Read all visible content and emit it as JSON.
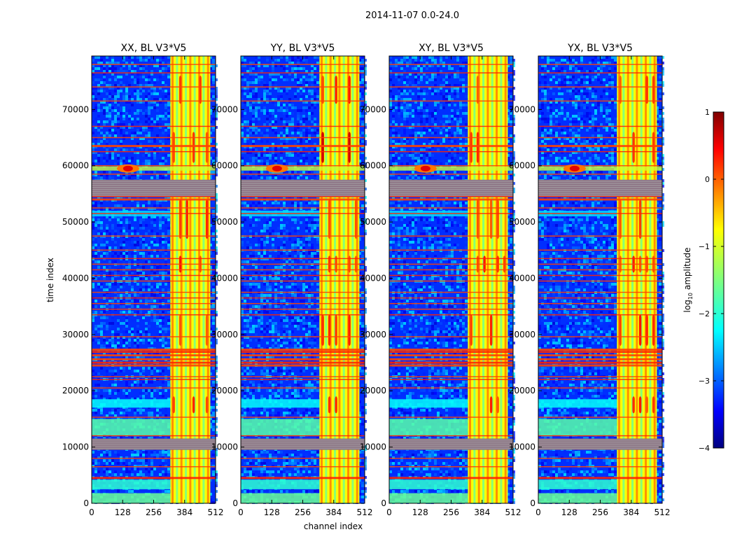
{
  "chart_data": {
    "type": "heatmap",
    "suptitle": "2014-11-07 0.0-24.0",
    "xlabel": "channel index",
    "ylabel": "time index",
    "xlim": [
      0,
      512
    ],
    "ylim": [
      0,
      79500
    ],
    "x_ticks": [
      0,
      128,
      256,
      384,
      512
    ],
    "x_tick_labels": [
      "0",
      "128",
      "256",
      "384",
      "512"
    ],
    "y_ticks": [
      0,
      10000,
      20000,
      30000,
      40000,
      50000,
      60000,
      70000
    ],
    "y_tick_labels": [
      "0",
      "10000",
      "20000",
      "30000",
      "40000",
      "50000",
      "60000",
      "70000"
    ],
    "panels": [
      {
        "title": "XX, BL V3*V5",
        "pol": "XX"
      },
      {
        "title": "YY, BL V3*V5",
        "pol": "YY"
      },
      {
        "title": "XY, BL V3*V5",
        "pol": "XY"
      },
      {
        "title": "YX, BL V3*V5",
        "pol": "YX"
      }
    ],
    "colorbar": {
      "label_main": "log",
      "label_sub": "10",
      "label_rest": " amplitude",
      "range": [
        -4,
        1
      ],
      "ticks": [
        1,
        0,
        -1,
        -2,
        -3,
        -4
      ],
      "tick_labels": [
        "1",
        "0",
        "−1",
        "−2",
        "−3",
        "−4"
      ],
      "colormap": "jet"
    },
    "rfi_channel_band": [
      325,
      490
    ],
    "rfi_band_time_ranges": [
      {
        "y0": 0,
        "y1": 1800,
        "value": -1.6
      },
      {
        "y0": 2500,
        "y1": 4200,
        "value": -1.9
      },
      {
        "y0": 12000,
        "y1": 15000,
        "value": -1.7
      },
      {
        "y0": 17000,
        "y1": 18500,
        "value": -2.1
      },
      {
        "y0": 51000,
        "y1": 52000,
        "value": -2.3
      },
      {
        "y0": 55000,
        "y1": 57500,
        "value": -2.0
      }
    ],
    "flagged_time_bands": [
      {
        "y0": 9500,
        "y1": 11500
      },
      {
        "y0": 54500,
        "y1": 57500
      }
    ],
    "hot_spot": {
      "channel": 150,
      "time": 59500,
      "value": 0.5
    }
  }
}
